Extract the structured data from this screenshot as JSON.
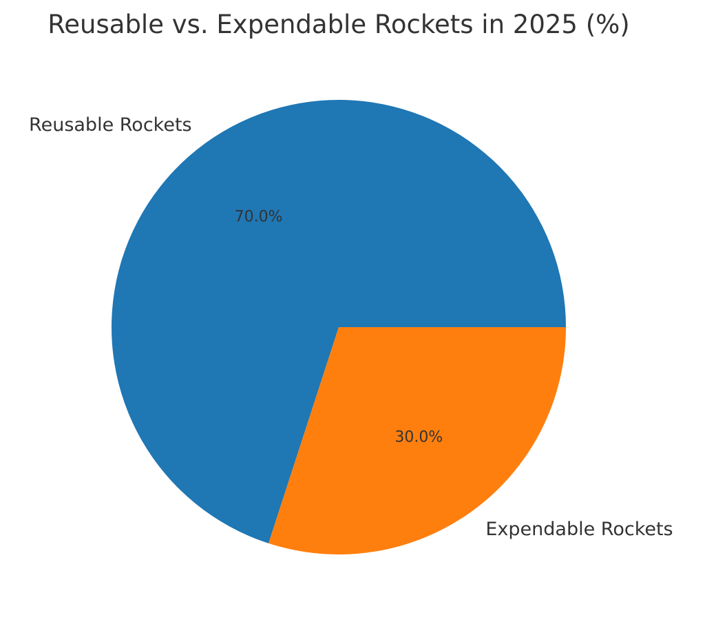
{
  "chart_data": {
    "type": "pie",
    "title": "Reusable vs. Expendable Rockets in 2025 (%)",
    "categories": [
      "Reusable Rockets",
      "Expendable Rockets"
    ],
    "values": [
      70,
      30
    ],
    "percent_labels": [
      "70.0%",
      "30.0%"
    ],
    "colors": [
      "#1f77b4",
      "#ff7f0e"
    ],
    "start_angle_deg": 0,
    "direction": "counterclockwise",
    "legend": "none"
  }
}
